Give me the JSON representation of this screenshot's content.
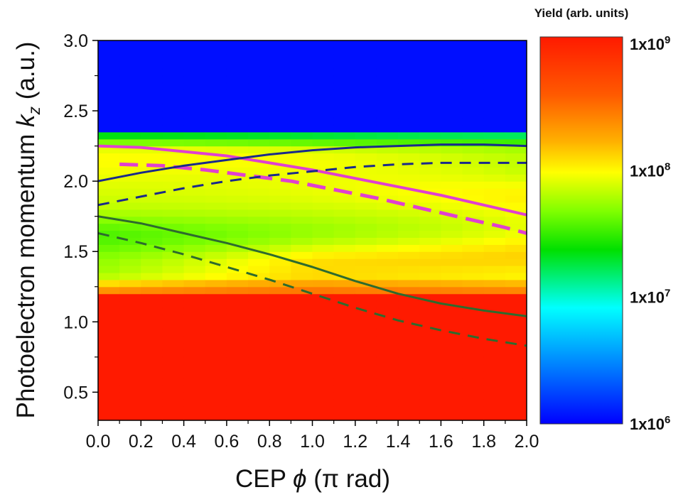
{
  "chart_data": {
    "type": "heatmap",
    "title": "",
    "xlabel": {
      "prefix": "CEP ",
      "symbol": "ϕ",
      "unit": " (π rad)"
    },
    "ylabel": {
      "prefix": "Photoelectron momentum ",
      "symbol": "k",
      "subscript": "z",
      "unit": " (a.u.)"
    },
    "xlim": [
      0.0,
      2.0
    ],
    "ylim": [
      0.3,
      3.0
    ],
    "x_ticks": [
      "0.0",
      "0.2",
      "0.4",
      "0.6",
      "0.8",
      "1.0",
      "1.2",
      "1.4",
      "1.6",
      "1.8",
      "2.0"
    ],
    "y_ticks": [
      "0.5",
      "1.0",
      "1.5",
      "2.0",
      "2.5",
      "3.0"
    ],
    "x_tick_values": [
      0.0,
      0.2,
      0.4,
      0.6,
      0.8,
      1.0,
      1.2,
      1.4,
      1.6,
      1.8,
      2.0
    ],
    "y_tick_values": [
      0.5,
      1.0,
      1.5,
      2.0,
      2.5,
      3.0
    ],
    "colorbar": {
      "title": "Yield (arb. units)",
      "scale": "log",
      "range": [
        1000000,
        1000000000
      ],
      "labels": [
        {
          "base": "1x10",
          "exp": "9",
          "value": 1000000000
        },
        {
          "base": "1x10",
          "exp": "8",
          "value": 100000000
        },
        {
          "base": "1x10",
          "exp": "7",
          "value": 10000000
        },
        {
          "base": "1x10",
          "exp": "6",
          "value": 1000000
        }
      ]
    },
    "heatmap_bands": {
      "x_bins": 20,
      "y_bin_size": 0.05,
      "log_yield_levels": [
        {
          "k_min": 0.3,
          "k_max": 1.2,
          "log_yield": 9.0
        },
        {
          "k_min": 2.35,
          "k_max": 3.0,
          "log_yield": 6.05
        }
      ]
    },
    "series": [
      {
        "style": "solid",
        "color": "#e040d0",
        "x": [
          0.0,
          0.2,
          0.4,
          0.6,
          0.8,
          1.0,
          1.2,
          1.4,
          1.6,
          1.8,
          2.0
        ],
        "y": [
          2.25,
          2.24,
          2.21,
          2.18,
          2.13,
          2.08,
          2.02,
          1.96,
          1.9,
          1.83,
          1.76
        ]
      },
      {
        "style": "dashed",
        "color": "#e040d0",
        "x": [
          0.1,
          0.3,
          0.5,
          0.7,
          0.9,
          1.1,
          1.3,
          1.5,
          1.7,
          1.9,
          2.0
        ],
        "y": [
          2.12,
          2.11,
          2.08,
          2.04,
          2.0,
          1.94,
          1.88,
          1.81,
          1.74,
          1.67,
          1.63
        ]
      },
      {
        "style": "solid",
        "color": "#1a2a8a",
        "x": [
          0.0,
          0.2,
          0.4,
          0.6,
          0.8,
          1.0,
          1.2,
          1.4,
          1.6,
          1.8,
          2.0
        ],
        "y": [
          2.0,
          2.06,
          2.11,
          2.15,
          2.19,
          2.22,
          2.24,
          2.25,
          2.26,
          2.26,
          2.25
        ]
      },
      {
        "style": "dashed",
        "color": "#1a2a8a",
        "x": [
          0.0,
          0.2,
          0.4,
          0.6,
          0.8,
          1.0,
          1.2,
          1.4,
          1.6,
          1.8,
          2.0
        ],
        "y": [
          1.83,
          1.89,
          1.95,
          2.0,
          2.04,
          2.07,
          2.1,
          2.12,
          2.13,
          2.13,
          2.13
        ]
      },
      {
        "style": "solid",
        "color": "#2e6b2e",
        "x": [
          0.0,
          0.2,
          0.4,
          0.6,
          0.8,
          1.0,
          1.2,
          1.4,
          1.6,
          1.8,
          2.0
        ],
        "y": [
          1.75,
          1.7,
          1.63,
          1.56,
          1.48,
          1.39,
          1.29,
          1.2,
          1.13,
          1.08,
          1.04
        ]
      },
      {
        "style": "dashed",
        "color": "#2e6b2e",
        "x": [
          0.0,
          0.2,
          0.4,
          0.6,
          0.8,
          1.0,
          1.2,
          1.4,
          1.6,
          1.8,
          2.0
        ],
        "y": [
          1.63,
          1.56,
          1.48,
          1.39,
          1.3,
          1.2,
          1.1,
          1.01,
          0.94,
          0.88,
          0.83
        ]
      }
    ]
  }
}
